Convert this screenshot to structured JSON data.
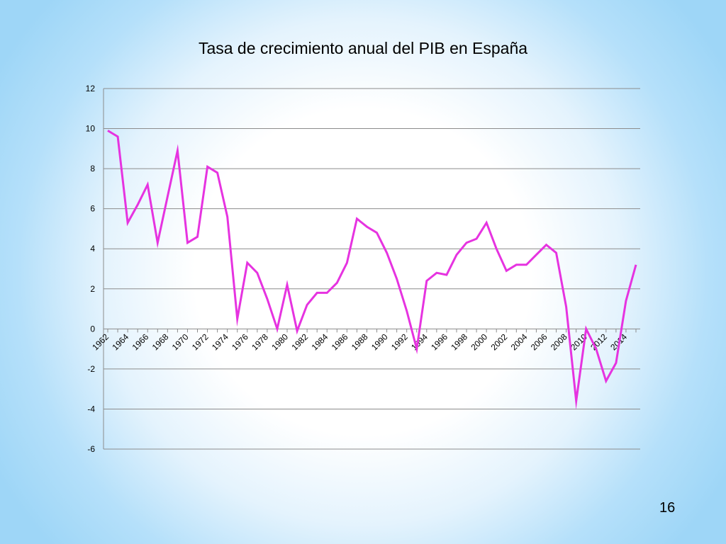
{
  "slide": {
    "page_number": "16"
  },
  "chart_data": {
    "type": "line",
    "title": "Tasa de crecimiento anual del PIB en España",
    "xlabel": "",
    "ylabel": "",
    "ylim": [
      -6,
      12
    ],
    "yticks": [
      -6,
      -4,
      -2,
      0,
      2,
      4,
      6,
      8,
      10,
      12
    ],
    "grid": true,
    "legend": "none",
    "color": "#e633e0",
    "x": [
      1962,
      1963,
      1964,
      1965,
      1966,
      1967,
      1968,
      1969,
      1970,
      1971,
      1972,
      1973,
      1974,
      1975,
      1976,
      1977,
      1978,
      1979,
      1980,
      1981,
      1982,
      1983,
      1984,
      1985,
      1986,
      1987,
      1988,
      1989,
      1990,
      1991,
      1992,
      1993,
      1994,
      1995,
      1996,
      1997,
      1998,
      1999,
      2000,
      2001,
      2002,
      2003,
      2004,
      2005,
      2006,
      2007,
      2008,
      2009,
      2010,
      2011,
      2012,
      2013,
      2014,
      2015
    ],
    "x_tick_labels": [
      "1962",
      "1964",
      "1966",
      "1968",
      "1970",
      "1972",
      "1974",
      "1976",
      "1978",
      "1980",
      "1982",
      "1984",
      "1986",
      "1988",
      "1990",
      "1992",
      "1994",
      "1996",
      "1998",
      "2000",
      "2002",
      "2004",
      "2006",
      "2008",
      "2010",
      "2012",
      "2014"
    ],
    "values": [
      9.9,
      9.6,
      5.3,
      6.2,
      7.2,
      4.3,
      6.6,
      8.9,
      4.3,
      4.6,
      8.1,
      7.8,
      5.6,
      0.5,
      3.3,
      2.8,
      1.5,
      0.0,
      2.2,
      -0.1,
      1.2,
      1.8,
      1.8,
      2.3,
      3.3,
      5.5,
      5.1,
      4.8,
      3.8,
      2.5,
      0.9,
      -1.0,
      2.4,
      2.8,
      2.7,
      3.7,
      4.3,
      4.5,
      5.3,
      4.0,
      2.9,
      3.2,
      3.2,
      3.7,
      4.2,
      3.8,
      1.1,
      -3.6,
      0.0,
      -1.0,
      -2.6,
      -1.7,
      1.4,
      3.2
    ]
  }
}
